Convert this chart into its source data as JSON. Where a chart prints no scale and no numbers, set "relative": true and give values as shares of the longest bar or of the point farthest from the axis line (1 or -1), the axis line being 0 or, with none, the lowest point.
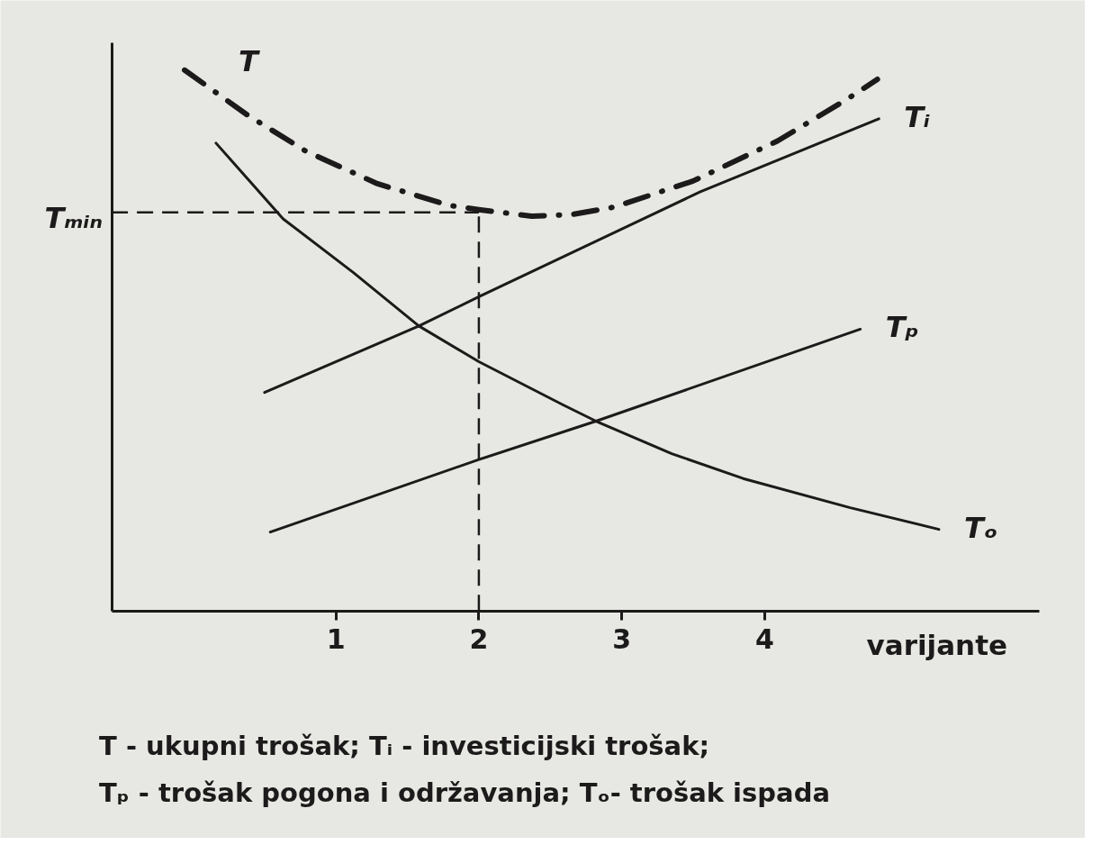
{
  "chart_data": {
    "type": "line",
    "relative": true,
    "xlabel": "varijante",
    "xlim": [
      -0.57,
      5.92
    ],
    "xticks": [
      1,
      2,
      3,
      4
    ],
    "series": [
      {
        "name": "T",
        "color": "#1c1a1a",
        "line_style": "dashdot",
        "x": [
          -0.06,
          0.38,
          0.79,
          1.29,
          1.79,
          2.0,
          2.37,
          2.65,
          2.95,
          3.5,
          4.09,
          4.57,
          4.79
        ],
        "values": [
          1.0,
          0.917,
          0.85,
          0.79,
          0.75,
          0.742,
          0.73,
          0.733,
          0.747,
          0.795,
          0.869,
          0.945,
          0.983
        ]
      },
      {
        "name": "Tᵢ",
        "color": "#1c1a1a",
        "line_style": "solid",
        "x": [
          0.5,
          1.58,
          2.0,
          3.55,
          4.8
        ],
        "values": [
          0.404,
          0.527,
          0.581,
          0.775,
          0.91
        ]
      },
      {
        "name": "Tₚ",
        "color": "#1c1a1a",
        "line_style": "solid",
        "x": [
          0.54,
          2.0,
          2.82,
          4.67
        ],
        "values": [
          0.146,
          0.28,
          0.351,
          0.521
        ]
      },
      {
        "name": "Tₒ",
        "color": "#1c1a1a",
        "line_style": "solid",
        "x": [
          0.16,
          0.63,
          1.12,
          1.58,
          2.0,
          2.59,
          2.82,
          3.35,
          3.85,
          4.6,
          5.22
        ],
        "values": [
          0.865,
          0.725,
          0.626,
          0.527,
          0.461,
          0.381,
          0.351,
          0.291,
          0.245,
          0.191,
          0.151
        ]
      }
    ],
    "ref_lines": [
      {
        "axis": "y",
        "value": 0.737,
        "label": "Tₘᵢₙ",
        "line_style": "dashed",
        "color": "#1c1a1a"
      },
      {
        "axis": "x",
        "value": 2,
        "line_style": "dashed",
        "color": "#1c1a1a"
      }
    ],
    "annotations": [
      "T - ukupni trošak; Tᵢ - investicijski trošak;",
      "Tₚ - trošak pogona i održavanja; Tₒ- trošak ispada"
    ]
  }
}
